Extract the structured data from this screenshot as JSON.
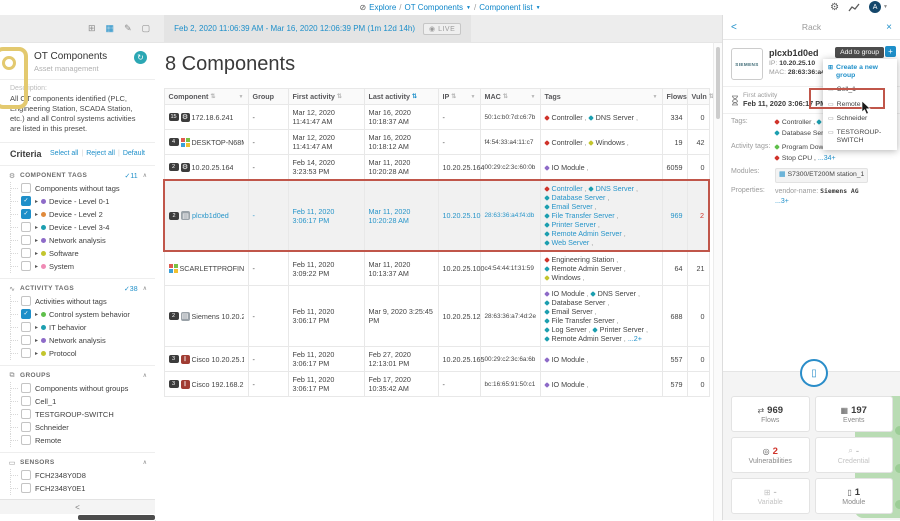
{
  "colors": {
    "accent": "#1e8fc9",
    "highlight": "#c0564a",
    "red": "#d0342b",
    "teal": "#1d9fb0",
    "purple": "#8e6bc8",
    "yellow": "#c3c52e",
    "green": "#5fbf4b",
    "tile_green": "#b9dcb4"
  },
  "topbar": {
    "breadcrumb": {
      "explore": "Explore",
      "preset": "OT Components",
      "view": "Component list"
    }
  },
  "timebar": {
    "range": "Feb 2, 2020 11:06:39 AM - Mar 16, 2020 12:06:39 PM (1m 12d 14h)",
    "live_label": "LIVE",
    "icons": [
      {
        "name": "add-interval-icon",
        "glyph": "⊞",
        "blue": false
      },
      {
        "name": "calendar-icon",
        "glyph": "▦",
        "blue": true
      },
      {
        "name": "edit-interval-icon",
        "glyph": "✎",
        "blue": false
      },
      {
        "name": "stop-icon",
        "glyph": "▢",
        "blue": false
      }
    ],
    "playback": [
      {
        "name": "skip-back-button",
        "glyph": "◀",
        "primary": false
      },
      {
        "name": "play-button",
        "glyph": "▶",
        "primary": true
      },
      {
        "name": "skip-forward-button",
        "glyph": "▶",
        "primary": false
      },
      {
        "name": "record-button",
        "glyph": "◎",
        "primary": false
      },
      {
        "name": "loop-button",
        "glyph": "⊙",
        "primary": false
      }
    ]
  },
  "sidebar": {
    "preset_title": "OT Components",
    "preset_subtitle": "Asset management",
    "description_label": "Description:",
    "description_text": "All OT components identified (PLC, Engineering Station, SCADA Station, etc.) and all Control systems activities are listed in this preset.",
    "criteria_label": "Criteria",
    "select_all": "Select all",
    "reject_all": "Reject all",
    "default_label": "Default",
    "collapse_label": "<",
    "sections": [
      {
        "id": "component-tags",
        "icon": "gear-icon",
        "glyph": "⚙",
        "label": "COMPONENT TAGS",
        "count": "11",
        "items": [
          {
            "label": "Components without tags",
            "checked": false,
            "arrow": false,
            "bulb": ""
          },
          {
            "label": "Device - Level 0-1",
            "checked": true,
            "arrow": true,
            "bulb": "#8e6bc8"
          },
          {
            "label": "Device - Level 2",
            "checked": true,
            "arrow": true,
            "bulb": "#e08a3c"
          },
          {
            "label": "Device - Level 3-4",
            "checked": false,
            "arrow": true,
            "bulb": "#1d9fb0"
          },
          {
            "label": "Network analysis",
            "checked": false,
            "arrow": true,
            "bulb": "#8e6bc8"
          },
          {
            "label": "Software",
            "checked": false,
            "arrow": true,
            "bulb": "#c3c52e"
          },
          {
            "label": "System",
            "checked": false,
            "arrow": true,
            "bulb": "#ef8bb5"
          }
        ]
      },
      {
        "id": "activity-tags",
        "icon": "activity-icon",
        "glyph": "∿",
        "label": "ACTIVITY TAGS",
        "count": "38",
        "items": [
          {
            "label": "Activities without tags",
            "checked": false,
            "arrow": false,
            "bulb": ""
          },
          {
            "label": "Control system behavior",
            "checked": true,
            "arrow": true,
            "bulb": "#5fbf4b"
          },
          {
            "label": "IT behavior",
            "checked": false,
            "arrow": true,
            "bulb": "#1d9fb0"
          },
          {
            "label": "Network analysis",
            "checked": false,
            "arrow": true,
            "bulb": "#8e6bc8"
          },
          {
            "label": "Protocol",
            "checked": false,
            "arrow": true,
            "bulb": "#c3c52e"
          }
        ]
      },
      {
        "id": "groups",
        "icon": "groups-icon",
        "glyph": "⧉",
        "label": "GROUPS",
        "count": "",
        "items": [
          {
            "label": "Components without groups",
            "checked": false,
            "arrow": false,
            "bulb": ""
          },
          {
            "label": "Cell_1",
            "checked": false,
            "arrow": false,
            "bulb": ""
          },
          {
            "label": "TESTGROUP-SWITCH",
            "checked": false,
            "arrow": false,
            "bulb": ""
          },
          {
            "label": "Schneider",
            "checked": false,
            "arrow": false,
            "bulb": ""
          },
          {
            "label": "Remote",
            "checked": false,
            "arrow": false,
            "bulb": ""
          }
        ]
      },
      {
        "id": "sensors",
        "icon": "sensor-icon",
        "glyph": "▭",
        "label": "SENSORS",
        "count": "",
        "items": [
          {
            "label": "FCH2348Y0D8",
            "checked": false,
            "arrow": false,
            "bulb": ""
          },
          {
            "label": "FCH2348Y0E1",
            "checked": false,
            "arrow": false,
            "bulb": ""
          }
        ]
      }
    ]
  },
  "main": {
    "title": "8 Components",
    "columns": [
      {
        "label": "Component",
        "sort": true,
        "filter": true,
        "sort_active": false
      },
      {
        "label": "Group",
        "sort": false,
        "filter": false,
        "sort_active": false
      },
      {
        "label": "First activity",
        "sort": true,
        "filter": false,
        "sort_active": false
      },
      {
        "label": "Last activity",
        "sort": true,
        "filter": false,
        "sort_active": true
      },
      {
        "label": "IP",
        "sort": true,
        "filter": true,
        "sort_active": false
      },
      {
        "label": "MAC",
        "sort": true,
        "filter": true,
        "sort_active": false
      },
      {
        "label": "Tags",
        "sort": false,
        "filter": true,
        "sort_active": false
      },
      {
        "label": "Flows",
        "sort": false,
        "filter": false,
        "sort_active": false
      },
      {
        "label": "Vuln",
        "sort": true,
        "filter": false,
        "sort_active": false
      }
    ],
    "rows": [
      {
        "badge": "15",
        "icon": "gear",
        "name": "172.18.6.241",
        "group": "-",
        "first": "Mar 12, 2020 11:41:47 AM",
        "last": "Mar 16, 2020 10:18:37 AM",
        "ip": "-",
        "mac": "50:1c:b0:7d:c6:7b",
        "tags": [
          {
            "label": "Controller",
            "color": "red"
          },
          {
            "label": "DNS Server",
            "color": "teal"
          }
        ],
        "tags_more": "",
        "flows": "334",
        "vuln": "0",
        "selected": false,
        "vuln_red": false
      },
      {
        "badge": "4",
        "icon": "windows",
        "name": "DESKTOP-N68ME37",
        "group": "-",
        "first": "Mar 12, 2020 11:41:47 AM",
        "last": "Mar 16, 2020 10:18:12 AM",
        "ip": "-",
        "mac": "f4:54:33:a4:11:c7",
        "tags": [
          {
            "label": "Controller",
            "color": "red"
          },
          {
            "label": "Windows",
            "color": "yellow"
          }
        ],
        "tags_more": "",
        "flows": "19",
        "vuln": "42",
        "selected": false,
        "vuln_red": false
      },
      {
        "badge": "2",
        "icon": "gear",
        "name": "10.20.25.164",
        "group": "-",
        "first": "Feb 14, 2020 3:23:53 PM",
        "last": "Mar 11, 2020 10:20:28 AM",
        "ip": "10.20.25.164",
        "mac": "00:29:c2:3c:60:0b",
        "tags": [
          {
            "label": "IO Module",
            "color": "purple"
          }
        ],
        "tags_more": "",
        "flows": "6059",
        "vuln": "0",
        "selected": false,
        "vuln_red": false
      },
      {
        "badge": "2",
        "icon": "plc",
        "name": "plcxb1d0ed",
        "group": "-",
        "first": "Feb 11, 2020 3:06:17 PM",
        "last": "Mar 11, 2020 10:20:28 AM",
        "ip": "10.20.25.10",
        "mac": "28:63:36:a4:f4:db",
        "tags": [
          {
            "label": "Controller",
            "color": "red"
          },
          {
            "label": "DNS Server",
            "color": "teal"
          },
          {
            "label": "Database Server",
            "color": "teal"
          },
          {
            "label": "Email Server",
            "color": "teal"
          },
          {
            "label": "File Transfer Server",
            "color": "teal"
          },
          {
            "label": "Printer Server",
            "color": "teal"
          },
          {
            "label": "Remote Admin Server",
            "color": "teal"
          },
          {
            "label": "Web Server",
            "color": "teal"
          }
        ],
        "tags_more": "",
        "flows": "969",
        "vuln": "2",
        "selected": true,
        "vuln_red": true
      },
      {
        "badge": "",
        "icon": "windows",
        "name": "SCARLETTPROFINE",
        "group": "-",
        "first": "Feb 11, 2020 3:09:22 PM",
        "last": "Mar 11, 2020 10:13:37 AM",
        "ip": "10.20.25.100",
        "mac": "c4:54:44:1f:31:59",
        "tags": [
          {
            "label": "Engineering Station",
            "color": "red"
          },
          {
            "label": "Remote Admin Server",
            "color": "teal"
          },
          {
            "label": "Windows",
            "color": "yellow"
          }
        ],
        "tags_more": "",
        "flows": "64",
        "vuln": "21",
        "selected": false,
        "vuln_red": false
      },
      {
        "badge": "2",
        "icon": "plc",
        "name": "Siemens 10.20.25.12",
        "group": "-",
        "first": "Feb 11, 2020 3:06:17 PM",
        "last": "Mar 9, 2020 3:25:45 PM",
        "ip": "10.20.25.12",
        "mac": "28:63:36:a7:4d:2e",
        "tags": [
          {
            "label": "IO Module",
            "color": "purple"
          },
          {
            "label": "DNS Server",
            "color": "teal"
          },
          {
            "label": "Database Server",
            "color": "teal"
          },
          {
            "label": "Email Server",
            "color": "teal"
          },
          {
            "label": "File Transfer Server",
            "color": "teal"
          },
          {
            "label": "Log Server",
            "color": "teal"
          },
          {
            "label": "Printer Server",
            "color": "teal"
          },
          {
            "label": "Remote Admin Server",
            "color": "teal"
          }
        ],
        "tags_more": "...2+",
        "flows": "688",
        "vuln": "0",
        "selected": false,
        "vuln_red": false
      },
      {
        "badge": "3",
        "icon": "cisco",
        "name": "Cisco 10.20.25.165",
        "group": "-",
        "first": "Feb 11, 2020 3:06:17 PM",
        "last": "Feb 27, 2020 12:13:01 PM",
        "ip": "10.20.25.165",
        "mac": "00:29:c2:3c:6a:6b",
        "tags": [
          {
            "label": "IO Module",
            "color": "purple"
          }
        ],
        "tags_more": "",
        "flows": "557",
        "vuln": "0",
        "selected": false,
        "vuln_red": false
      },
      {
        "badge": "3",
        "icon": "cisco",
        "name": "Cisco 192.168.2.17",
        "group": "-",
        "first": "Feb 11, 2020 3:06:17 PM",
        "last": "Feb 17, 2020 10:35:42 AM",
        "ip": "-",
        "mac": "bc:16:65:91:50:c1",
        "tags": [
          {
            "label": "IO Module",
            "color": "purple"
          }
        ],
        "tags_more": "",
        "flows": "579",
        "vuln": "0",
        "selected": false,
        "vuln_red": false
      }
    ]
  },
  "panel": {
    "back_label": "<",
    "title": "Rack",
    "close_label": "×",
    "vendor_logo": "SIEMENS",
    "device_name": "plcxb1d0ed",
    "ip_label": "IP:",
    "ip": "10.20.25.10",
    "mac_label": "MAC:",
    "mac": "28:63:36:a4:f4:db",
    "tooltip": "Add to group",
    "menu": [
      {
        "label": "Create a new group",
        "primary": true,
        "highlight": false
      },
      {
        "label": "Cell_1",
        "primary": false,
        "highlight": false
      },
      {
        "label": "Remote",
        "primary": false,
        "highlight": true
      },
      {
        "label": "Schneider",
        "primary": false,
        "highlight": false
      },
      {
        "label": "TESTGROUP-SWITCH",
        "primary": false,
        "highlight": false
      }
    ],
    "first_activity_label": "First activity",
    "first_activity_value": "Feb 11, 2020 3:06:17 PM",
    "tags_label": "Tags:",
    "tags": [
      {
        "label": "Controller",
        "color": "red"
      },
      {
        "label": "DNS Server",
        "color": "teal"
      },
      {
        "label": "Database Server",
        "color": "teal"
      }
    ],
    "activity_label": "Activity tags:",
    "activity_tags": [
      {
        "label": "Program Download",
        "color": "green"
      },
      {
        "label": "Stop CPU",
        "color": "red"
      }
    ],
    "activity_more": "...34+",
    "modules_label": "Modules:",
    "module_value": "S7300/ET200M station_1",
    "properties_label": "Properties:",
    "property_key": "vendor-name:",
    "property_value": "Siemens AG",
    "properties_more": "...3+",
    "tiles": [
      {
        "icon": "flows-icon",
        "glyph": "⇄",
        "value": "969",
        "label": "Flows",
        "disabled": false,
        "value_red": false
      },
      {
        "icon": "events-icon",
        "glyph": "▦",
        "value": "197",
        "label": "Events",
        "disabled": false,
        "value_red": false
      },
      {
        "icon": "vulnerability-icon",
        "glyph": "◎",
        "value": "2",
        "label": "Vulnerabilities",
        "disabled": false,
        "value_red": true
      },
      {
        "icon": "credential-icon",
        "glyph": "⌕",
        "value": "-",
        "label": "Credential",
        "disabled": true,
        "value_red": false
      },
      {
        "icon": "variable-icon",
        "glyph": "⊞",
        "value": "-",
        "label": "Variable",
        "disabled": true,
        "value_red": false
      },
      {
        "icon": "module-icon",
        "glyph": "▯",
        "value": "1",
        "label": "Module",
        "disabled": false,
        "value_red": false
      }
    ]
  }
}
